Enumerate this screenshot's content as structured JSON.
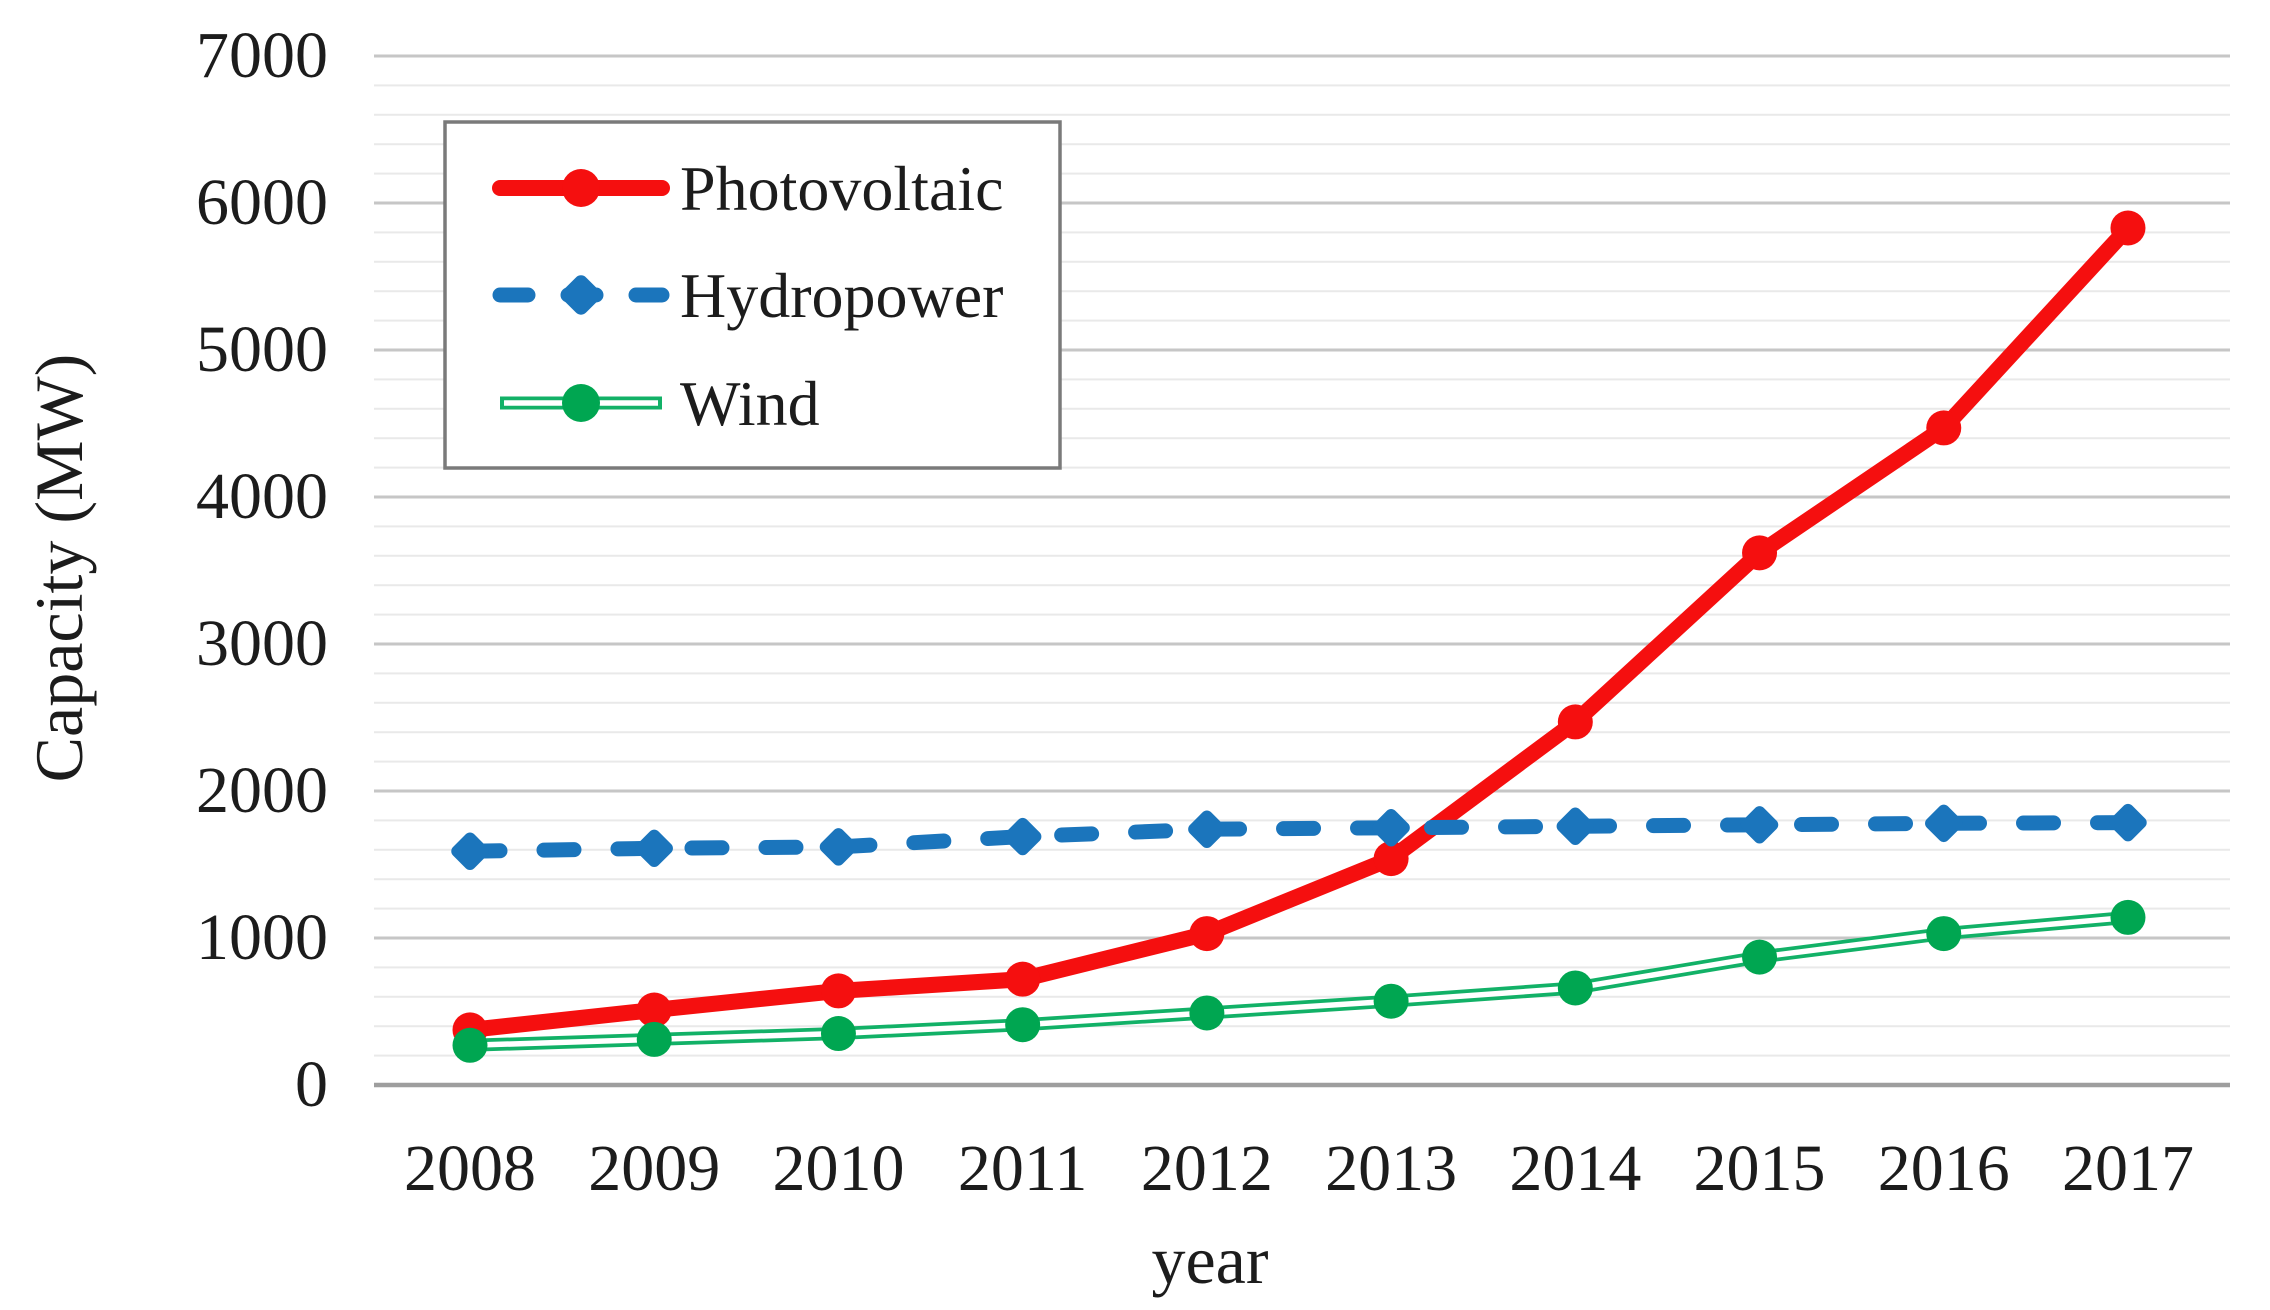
{
  "chart_data": {
    "type": "line",
    "title": "",
    "xlabel": "year",
    "ylabel": "Capacity (MW)",
    "x": [
      2008,
      2009,
      2010,
      2011,
      2012,
      2013,
      2014,
      2015,
      2016,
      2017
    ],
    "x_tick_labels": [
      "2008",
      "2009",
      "2010",
      "2011",
      "2012",
      "2013",
      "2014",
      "2015",
      "2016",
      "2017"
    ],
    "ylim": [
      0,
      7000
    ],
    "y_major_step": 1000,
    "y_minor_step": 200,
    "y_tick_labels": [
      "0",
      "1000",
      "2000",
      "3000",
      "4000",
      "5000",
      "6000",
      "7000"
    ],
    "grid": true,
    "legend_position": "top-left",
    "series": [
      {
        "name": "Photovoltaic",
        "color": "#f50f0f",
        "style": "solid",
        "marker": "circle",
        "values": [
          375,
          510,
          640,
          720,
          1030,
          1540,
          2470,
          3620,
          4470,
          5830
        ]
      },
      {
        "name": "Hydropower",
        "color": "#1b75bc",
        "style": "dashed",
        "marker": "diamond",
        "values": [
          1590,
          1610,
          1620,
          1690,
          1740,
          1750,
          1760,
          1770,
          1780,
          1785
        ]
      },
      {
        "name": "Wind",
        "color": "#12b167",
        "marker_color": "#00a651",
        "style": "double",
        "marker": "circle",
        "values": [
          270,
          310,
          350,
          410,
          490,
          570,
          660,
          870,
          1030,
          1140
        ]
      }
    ],
    "colors": {
      "minor_grid": "#e9e9e9",
      "major_grid": "#c6c6c6",
      "zero_line": "#9e9e9e",
      "legend_border": "#7a7a7a",
      "text": "#1c1c1c"
    }
  }
}
